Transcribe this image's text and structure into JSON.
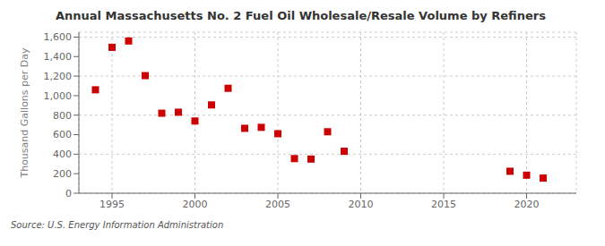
{
  "chart_data": {
    "type": "scatter",
    "title": "Annual Massachusetts No. 2 Fuel Oil Wholesale/Resale Volume by Refiners",
    "y_label": "Thousand Gallons per Day",
    "annotations": [
      "Source: U.S. Energy Information Administration"
    ],
    "color": "#cc0000",
    "marker": "square",
    "grid": true,
    "x": [
      1994,
      1995,
      1996,
      1997,
      1998,
      1999,
      2000,
      2001,
      2002,
      2003,
      2004,
      2005,
      2006,
      2007,
      2008,
      2009,
      2019,
      2020,
      2021
    ],
    "values": [
      1060,
      1495,
      1560,
      1205,
      820,
      830,
      740,
      905,
      1075,
      665,
      675,
      610,
      355,
      350,
      630,
      430,
      225,
      185,
      155
    ],
    "xlim": [
      1993.0,
      2023.0
    ],
    "xticks": [
      1995,
      2000,
      2005,
      2010,
      2015,
      2020
    ],
    "ylim": [
      0,
      1650
    ],
    "yticks": [
      0,
      200,
      400,
      600,
      800,
      {
        "value": 1000,
        "label": "1,000"
      },
      {
        "value": 1200,
        "label": "1,200"
      },
      {
        "value": 1400,
        "label": "1,400"
      },
      {
        "value": 1600,
        "label": "1,600"
      }
    ]
  }
}
